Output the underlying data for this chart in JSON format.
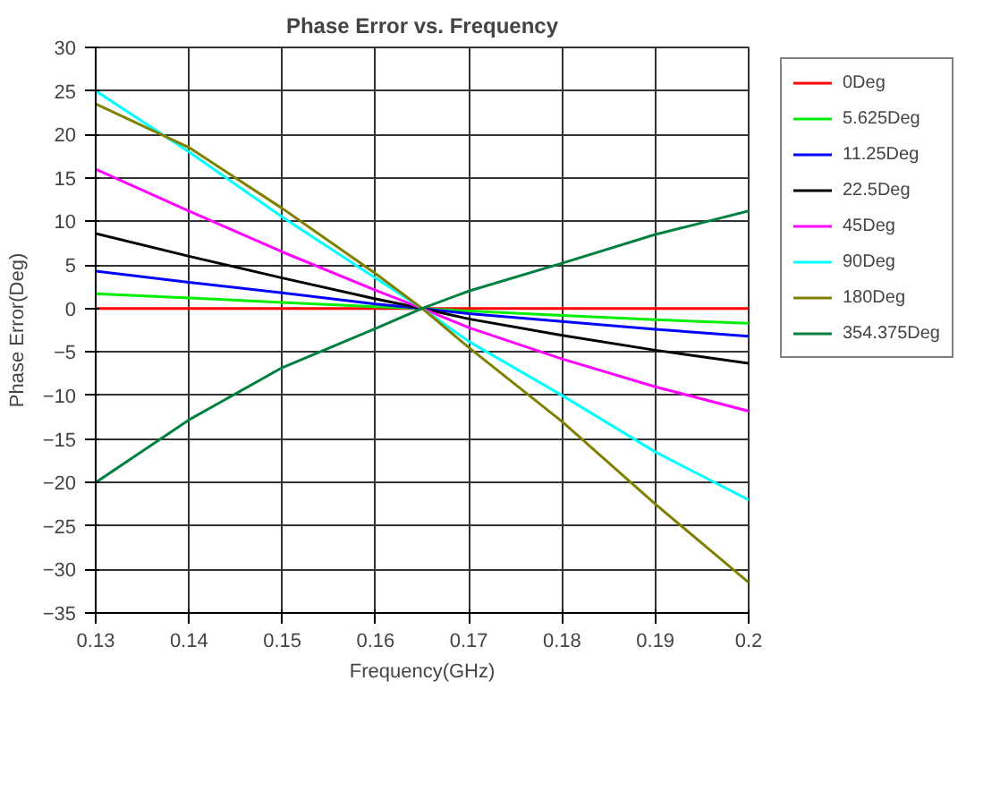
{
  "chart_data": {
    "type": "line",
    "title": "Phase Error vs. Frequency",
    "xlabel": "Frequency(GHz)",
    "ylabel": "Phase Error(Deg)",
    "x": [
      0.13,
      0.14,
      0.15,
      0.16,
      0.165,
      0.17,
      0.18,
      0.19,
      0.2
    ],
    "xlim": [
      0.13,
      0.2
    ],
    "xticks": [
      0.13,
      0.14,
      0.15,
      0.16,
      0.17,
      0.18,
      0.19,
      0.2
    ],
    "ylim": [
      -35,
      30
    ],
    "yticks": [
      -35,
      -30,
      -25,
      -20,
      -15,
      -10,
      -5,
      0,
      5,
      10,
      15,
      20,
      25,
      30
    ],
    "grid": true,
    "legend": "right",
    "line_style": "solid",
    "series": [
      {
        "name": "0Deg",
        "color": "#ff0000",
        "values": [
          0,
          0,
          0,
          0,
          0,
          0,
          0,
          0,
          0
        ]
      },
      {
        "name": "5.625Deg",
        "color": "#00ee00",
        "values": [
          1.7,
          1.2,
          0.7,
          0.2,
          0,
          -0.3,
          -0.8,
          -1.3,
          -1.7
        ]
      },
      {
        "name": "11.25Deg",
        "color": "#0000ff",
        "values": [
          4.3,
          3.0,
          1.8,
          0.5,
          0,
          -0.6,
          -1.5,
          -2.4,
          -3.2
        ]
      },
      {
        "name": "22.5Deg",
        "color": "#000000",
        "values": [
          8.6,
          6.0,
          3.5,
          1.1,
          0,
          -1.2,
          -3.1,
          -4.8,
          -6.3
        ]
      },
      {
        "name": "45Deg",
        "color": "#ff00ff",
        "values": [
          16,
          11.2,
          6.5,
          2.1,
          0,
          -2.2,
          -5.8,
          -9.0,
          -11.8
        ]
      },
      {
        "name": "90Deg",
        "color": "#00ffff",
        "values": [
          25,
          18,
          10.5,
          3.5,
          0,
          -3.8,
          -10,
          -16.5,
          -22
        ]
      },
      {
        "name": "180Deg",
        "color": "#808000",
        "values": [
          23.5,
          18.5,
          11.5,
          4,
          0,
          -4.5,
          -13,
          -22.5,
          -31.5
        ]
      },
      {
        "name": "354.375Deg",
        "color": "#008040",
        "values": [
          -20,
          -12.8,
          -6.8,
          -2.3,
          0,
          2,
          5.2,
          8.5,
          11.2
        ]
      }
    ]
  }
}
